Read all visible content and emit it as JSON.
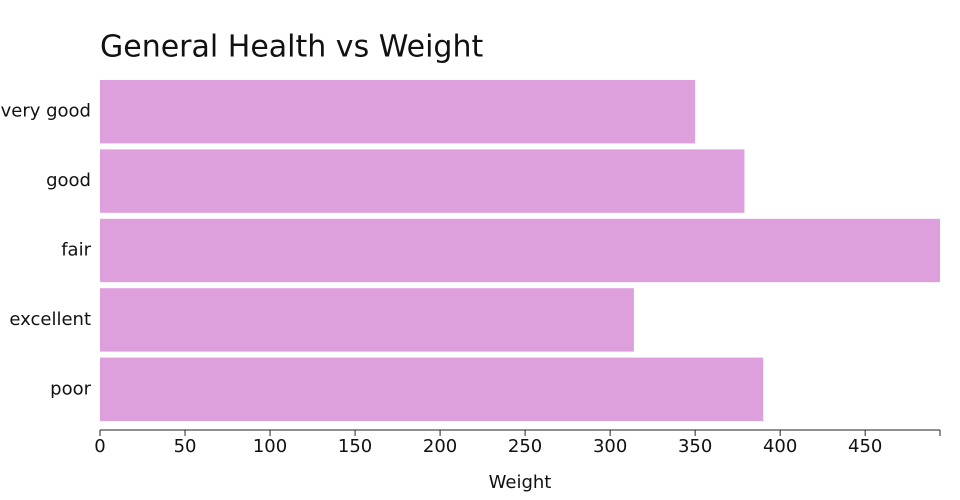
{
  "chart_data": {
    "type": "bar",
    "orientation": "horizontal",
    "title": "General Health vs Weight",
    "x_label": "Weight",
    "categories": [
      "very good",
      "good",
      "fair",
      "excellent",
      "poor"
    ],
    "values": [
      350,
      379,
      494,
      314,
      390
    ],
    "color": "#dda0dd",
    "xlim": [
      0,
      494
    ],
    "xticks": [
      0,
      50,
      100,
      150,
      200,
      250,
      300,
      350,
      400,
      450
    ]
  }
}
